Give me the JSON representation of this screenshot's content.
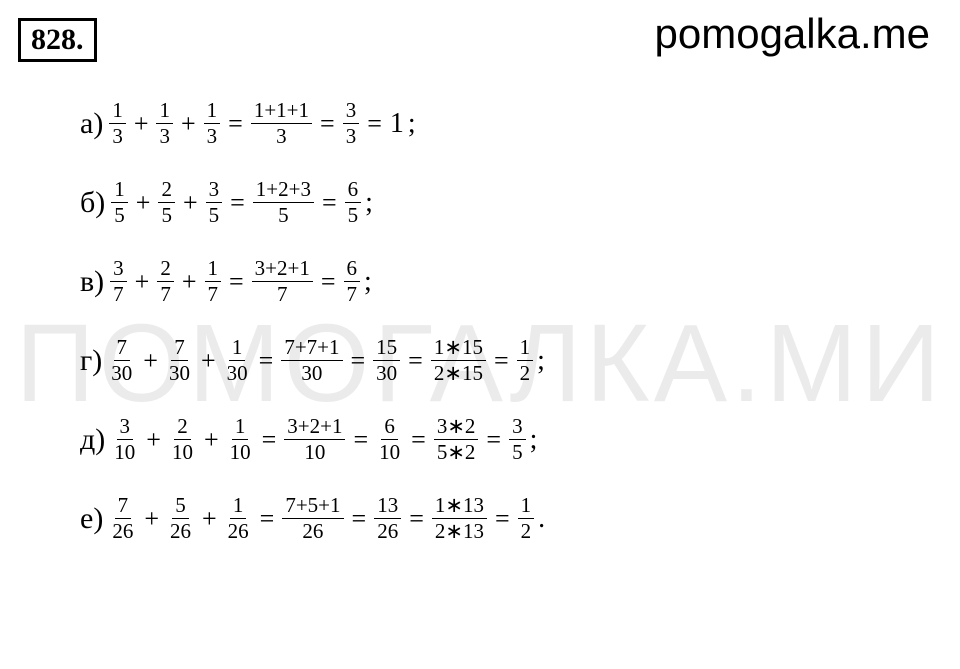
{
  "site_label": "pomogalka.me",
  "problem_number": "828",
  "watermark_text": "ПОМОГАЛКА.МИ",
  "rows": [
    {
      "label": "а)",
      "terms": [
        {
          "num": "1",
          "den": "3"
        },
        {
          "num": "1",
          "den": "3"
        },
        {
          "num": "1",
          "den": "3"
        }
      ],
      "sumfrac": {
        "num": "1+1+1",
        "den": "3"
      },
      "steps": [
        {
          "num": "3",
          "den": "3"
        }
      ],
      "final_text": "1",
      "tail": ";"
    },
    {
      "label": "б)",
      "terms": [
        {
          "num": "1",
          "den": "5"
        },
        {
          "num": "2",
          "den": "5"
        },
        {
          "num": "3",
          "den": "5"
        }
      ],
      "sumfrac": {
        "num": "1+2+3",
        "den": "5"
      },
      "steps": [
        {
          "num": "6",
          "den": "5"
        }
      ],
      "final_text": "",
      "tail": ";"
    },
    {
      "label": "в)",
      "terms": [
        {
          "num": "3",
          "den": "7"
        },
        {
          "num": "2",
          "den": "7"
        },
        {
          "num": "1",
          "den": "7"
        }
      ],
      "sumfrac": {
        "num": "3+2+1",
        "den": "7"
      },
      "steps": [
        {
          "num": "6",
          "den": "7"
        }
      ],
      "final_text": "",
      "tail": ";"
    },
    {
      "label": "г)",
      "terms": [
        {
          "num": "7",
          "den": "30"
        },
        {
          "num": "7",
          "den": "30"
        },
        {
          "num": "1",
          "den": "30"
        }
      ],
      "sumfrac": {
        "num": "7+7+1",
        "den": "30"
      },
      "steps": [
        {
          "num": "15",
          "den": "30"
        },
        {
          "num": "1∗15",
          "den": "2∗15"
        },
        {
          "num": "1",
          "den": "2"
        }
      ],
      "final_text": "",
      "tail": ";"
    },
    {
      "label": "д)",
      "terms": [
        {
          "num": "3",
          "den": "10"
        },
        {
          "num": "2",
          "den": "10"
        },
        {
          "num": "1",
          "den": "10"
        }
      ],
      "sumfrac": {
        "num": "3+2+1",
        "den": "10"
      },
      "steps": [
        {
          "num": "6",
          "den": "10"
        },
        {
          "num": "3∗2",
          "den": "5∗2"
        },
        {
          "num": "3",
          "den": "5"
        }
      ],
      "final_text": "",
      "tail": ";"
    },
    {
      "label": "е)",
      "terms": [
        {
          "num": "7",
          "den": "26"
        },
        {
          "num": "5",
          "den": "26"
        },
        {
          "num": "1",
          "den": "26"
        }
      ],
      "sumfrac": {
        "num": "7+5+1",
        "den": "26"
      },
      "steps": [
        {
          "num": "13",
          "den": "26"
        },
        {
          "num": "1∗13",
          "den": "2∗13"
        },
        {
          "num": "1",
          "den": "2"
        }
      ],
      "final_text": "",
      "tail": "."
    }
  ],
  "colors": {
    "background": "#ffffff",
    "text": "#000000",
    "watermark": "rgba(0,0,0,0.08)"
  },
  "typography": {
    "base_font": "Times New Roman",
    "math_font": "Cambria Math",
    "label_size_pt": 30,
    "frac_size_pt": 21,
    "site_label_size_pt": 42
  }
}
